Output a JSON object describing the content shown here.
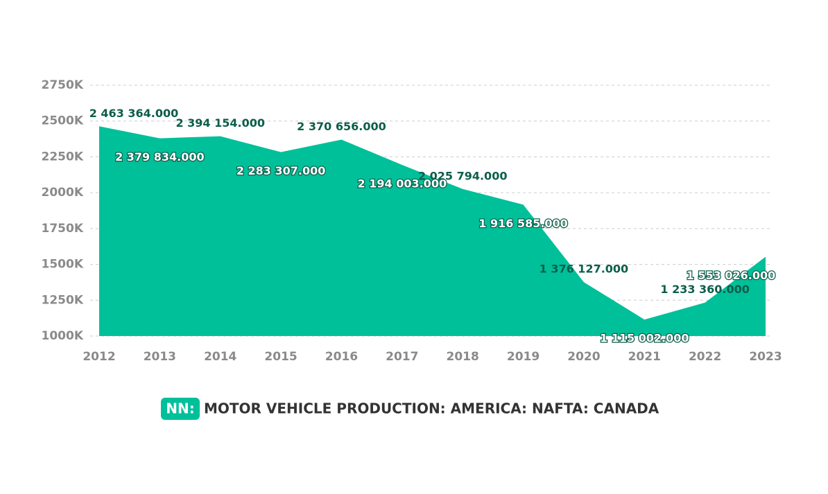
{
  "chart_data": {
    "type": "area",
    "x": [
      2012,
      2013,
      2014,
      2015,
      2016,
      2017,
      2018,
      2019,
      2020,
      2021,
      2022,
      2023
    ],
    "series": [
      {
        "name": "MOTOR VEHICLE PRODUCTION: AMERICA: NAFTA: CANADA",
        "color": "#00c09a",
        "values": [
          2463364,
          2379834,
          2394154,
          2283307,
          2370656,
          2194003,
          2025794,
          1916585,
          1376127,
          1115002,
          1233360,
          1553026
        ],
        "value_labels": [
          "2 463 364.000",
          "2 379 834.000",
          "2 394 154.000",
          "2 283 307.000",
          "2 370 656.000",
          "2 194 003.000",
          "2 025 794.000",
          "1 916 585.000",
          "1 376 127.000",
          "1 115 002.000",
          "1 233 360.000",
          "1 553 026.000"
        ]
      }
    ],
    "legend_badge": "NN:",
    "xlim": [
      2012,
      2023
    ],
    "xticks": [
      2012,
      2013,
      2014,
      2015,
      2016,
      2017,
      2018,
      2019,
      2020,
      2021,
      2022,
      2023
    ],
    "ylim": [
      1000000,
      2750000
    ],
    "yticks": [
      {
        "value": 1000000,
        "label": "1000K"
      },
      {
        "value": 1250000,
        "label": "1250K"
      },
      {
        "value": 1500000,
        "label": "1500K"
      },
      {
        "value": 1750000,
        "label": "1750K"
      },
      {
        "value": 2000000,
        "label": "2000K"
      },
      {
        "value": 2250000,
        "label": "2250K"
      },
      {
        "value": 2500000,
        "label": "2500K"
      },
      {
        "value": 2750000,
        "label": "2750K"
      }
    ],
    "grid": true
  }
}
